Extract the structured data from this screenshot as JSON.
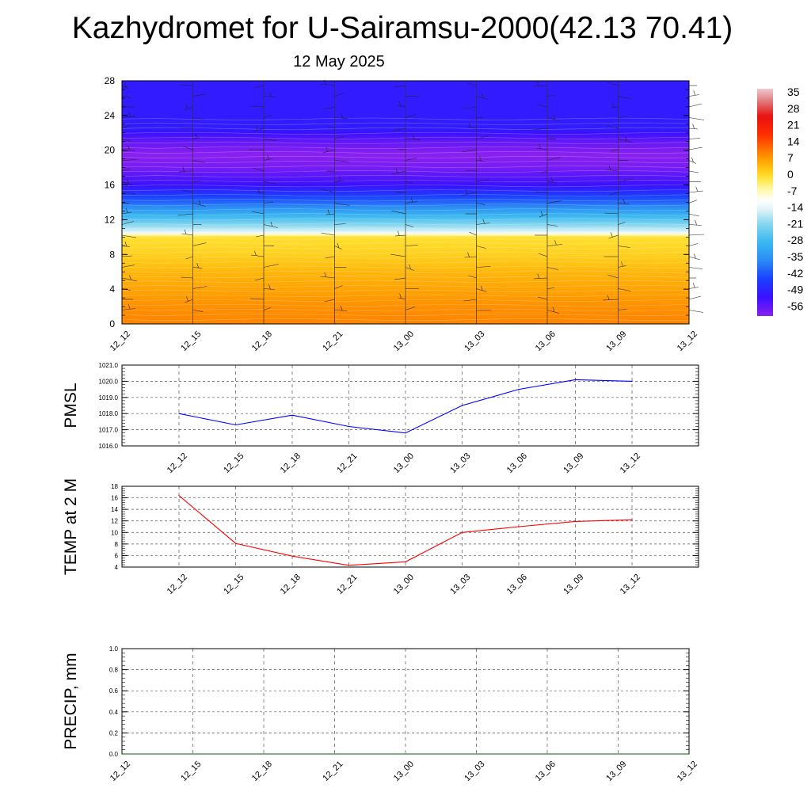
{
  "header": {
    "title": "Kazhydromet for U-Sairamsu-2000(42.13 70.41)",
    "date": "12 May 2025"
  },
  "chart_data": [
    {
      "type": "heatmap",
      "name": "temperature-cross-section",
      "xlabel": "",
      "ylabel": "",
      "x_ticks": [
        "12_12",
        "12_15",
        "12_18",
        "12_21",
        "13_00",
        "13_03",
        "13_06",
        "13_09",
        "13_12"
      ],
      "y_ticks": [
        0,
        4,
        8,
        12,
        16,
        20,
        24,
        28
      ],
      "ylim": [
        0,
        28
      ],
      "colorbar_labels": [
        "35",
        "28",
        "21",
        "14",
        "7",
        "0",
        "-7",
        "-14",
        "-21",
        "-28",
        "-35",
        "-42",
        "-49",
        "-56"
      ],
      "colorbar_range": [
        -60,
        38
      ],
      "profile_levels": [
        0,
        2,
        4,
        6,
        8,
        10,
        10.6,
        12,
        14,
        16,
        18,
        19.5,
        21,
        22.5,
        24,
        28
      ],
      "profile_values": [
        10,
        9,
        7,
        5,
        2,
        0,
        -14,
        -25,
        -40,
        -52,
        -58,
        -60,
        -56,
        -50,
        -50,
        -50
      ],
      "wind_barbs": true,
      "colors": {
        "cold": "#8a20f0",
        "freezing_band": "#ffffff",
        "warm": "#ff6a00"
      }
    },
    {
      "type": "line",
      "name": "PMSL",
      "ylabel": "PMSL",
      "categories": [
        "12_12",
        "12_15",
        "12_18",
        "12_21",
        "13_00",
        "13_03",
        "13_06",
        "13_09",
        "13_12"
      ],
      "values": [
        1018.0,
        1017.3,
        1017.9,
        1017.2,
        1016.8,
        1018.5,
        1019.5,
        1020.1,
        1020.0
      ],
      "y_ticks": [
        "1016.0",
        "1017.0",
        "1018.0",
        "1019.0",
        "1020.0",
        "1021.0"
      ],
      "ylim": [
        1016,
        1021
      ],
      "color": "#0000ff",
      "grid": true
    },
    {
      "type": "line",
      "name": "TEMP at 2 M",
      "ylabel": "TEMP at 2 M",
      "categories": [
        "12_12",
        "12_15",
        "12_18",
        "12_21",
        "13_00",
        "13_03",
        "13_06",
        "13_09",
        "13_12"
      ],
      "values": [
        16.4,
        8.1,
        5.9,
        4.3,
        4.9,
        10.0,
        11.0,
        11.9,
        12.2
      ],
      "y_ticks": [
        "4",
        "6",
        "8",
        "10",
        "12",
        "14",
        "16",
        "18"
      ],
      "ylim": [
        4,
        18
      ],
      "color": "#ff0000",
      "grid": true
    },
    {
      "type": "line",
      "name": "PRECIP, mm",
      "ylabel": "PRECIP, mm",
      "categories": [
        "12_12",
        "12_15",
        "12_18",
        "12_21",
        "13_00",
        "13_03",
        "13_06",
        "13_09",
        "13_12"
      ],
      "values": [
        0,
        0,
        0,
        0,
        0,
        0,
        0,
        0,
        0
      ],
      "y_ticks": [
        "0.0",
        "0.2",
        "0.4",
        "0.6",
        "0.8",
        "1.0"
      ],
      "ylim": [
        0,
        1
      ],
      "color": "#006400",
      "grid": true
    }
  ]
}
